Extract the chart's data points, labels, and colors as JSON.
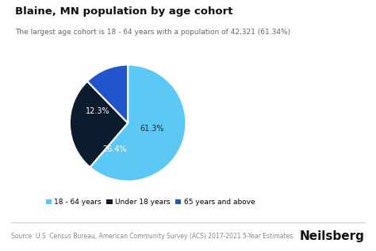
{
  "title": "Blaine, MN population by age cohort",
  "subtitle": "The largest age cohort is 18 - 64 years with a population of 42,321 (61.34%)",
  "slices": [
    61.3,
    26.4,
    12.3
  ],
  "labels": [
    "18 - 64 years",
    "Under 18 years",
    "65 years and above"
  ],
  "colors": [
    "#5bc8f5",
    "#0d1b2e",
    "#2255cc"
  ],
  "pct_labels": [
    "61.3%",
    "26.4%",
    "12.3%"
  ],
  "pct_text_colors": [
    "#2a2a2a",
    "#ffffff",
    "#ffffff"
  ],
  "startangle": 90,
  "source_text": "Source: U.S. Census Bureau, American Community Survey (ACS) 2017-2021 5-Year Estimates",
  "brand_text": "Neilsberg",
  "background_color": "#ffffff",
  "title_fontsize": 9.5,
  "subtitle_fontsize": 6.5,
  "legend_fontsize": 6.5,
  "source_fontsize": 5.5,
  "brand_fontsize": 11
}
